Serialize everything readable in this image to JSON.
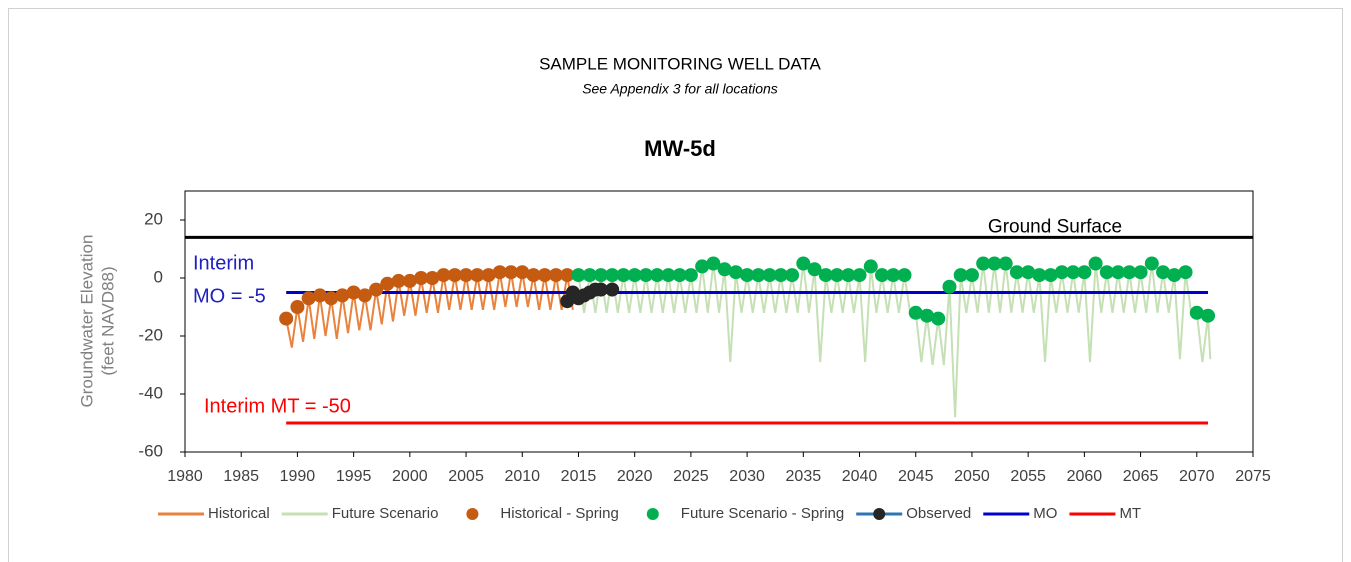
{
  "chart_data": {
    "type": "line",
    "title": "SAMPLE MONITORING WELL DATA",
    "subtitle": "See Appendix 3 for all locations",
    "chart_title": "MW-5d",
    "y_label": [
      "Groundwater Elevation",
      "(feet NAVD88)"
    ],
    "xlim": [
      1980,
      2075
    ],
    "xticks": [
      1980,
      1985,
      1990,
      1995,
      2000,
      2005,
      2010,
      2015,
      2020,
      2025,
      2030,
      2035,
      2040,
      2045,
      2050,
      2055,
      2060,
      2065,
      2070,
      2075
    ],
    "ylim": [
      -60,
      30
    ],
    "yticks": [
      -60,
      -40,
      -20,
      0,
      20
    ],
    "ground_surface": {
      "label": "Ground Surface",
      "value": 14,
      "color": "#000000"
    },
    "annotations": [
      {
        "lines": [
          "Interim",
          "MO = -5"
        ],
        "color": "#2020c0"
      },
      {
        "lines": [
          "Interim MT = -50"
        ],
        "color": "#ff0000"
      }
    ],
    "series": [
      {
        "name": "Historical",
        "kind": "line",
        "color": "#e8823c",
        "x": [
          1989,
          1989.5,
          1990,
          1990.5,
          1991,
          1991.5,
          1992,
          1992.5,
          1993,
          1993.5,
          1994,
          1994.5,
          1995,
          1995.5,
          1996,
          1996.5,
          1997,
          1997.5,
          1998,
          1998.5,
          1999,
          1999.5,
          2000,
          2000.5,
          2001,
          2001.5,
          2002,
          2002.5,
          2003,
          2003.5,
          2004,
          2004.5,
          2005,
          2005.5,
          2006,
          2006.5,
          2007,
          2007.5,
          2008,
          2008.5,
          2009,
          2009.5,
          2010,
          2010.5,
          2011,
          2011.5,
          2012,
          2012.5,
          2013,
          2013.5,
          2014,
          2014.5
        ],
        "values": [
          -14,
          -24,
          -10,
          -22,
          -7,
          -21,
          -6,
          -20,
          -7,
          -21,
          -6,
          -19,
          -5,
          -18,
          -6,
          -18,
          -4,
          -16,
          -2,
          -15,
          -1,
          -13,
          -1,
          -13,
          0,
          -12,
          0,
          -12,
          1,
          -11,
          1,
          -11,
          1,
          -11,
          1,
          -11,
          1,
          -11,
          2,
          -10,
          2,
          -10,
          2,
          -10,
          1,
          -11,
          1,
          -11,
          1,
          -11,
          1,
          -11
        ]
      },
      {
        "name": "Future Scenario",
        "kind": "line",
        "color": "#c5e0b4",
        "x": [
          2015,
          2015.5,
          2016,
          2016.5,
          2017,
          2017.5,
          2018,
          2018.5,
          2019,
          2019.5,
          2020,
          2020.5,
          2021,
          2021.5,
          2022,
          2022.5,
          2023,
          2023.5,
          2024,
          2024.5,
          2025,
          2025.5,
          2026,
          2026.5,
          2027,
          2027.5,
          2028,
          2028.5,
          2029,
          2029.5,
          2030,
          2030.5,
          2031,
          2031.5,
          2032,
          2032.5,
          2033,
          2033.5,
          2034,
          2034.5,
          2035,
          2035.5,
          2036,
          2036.5,
          2037,
          2037.5,
          2038,
          2038.5,
          2039,
          2039.5,
          2040,
          2040.5,
          2041,
          2041.5,
          2042,
          2042.5,
          2043,
          2043.5,
          2044,
          2044.5,
          2045,
          2045.5,
          2046,
          2046.5,
          2047,
          2047.5,
          2048,
          2048.5,
          2049,
          2049.5,
          2050,
          2050.5,
          2051,
          2051.5,
          2052,
          2052.5,
          2053,
          2053.5,
          2054,
          2054.5,
          2055,
          2055.5,
          2056,
          2056.5,
          2057,
          2057.5,
          2058,
          2058.5,
          2059,
          2059.5,
          2060,
          2060.5,
          2061,
          2061.5,
          2062,
          2062.5,
          2063,
          2063.5,
          2064,
          2064.5,
          2065,
          2065.5,
          2066,
          2066.5,
          2067,
          2067.5,
          2068,
          2068.5,
          2069,
          2069.5,
          2070,
          2070.5,
          2071,
          2071.2
        ],
        "values": [
          1,
          -12,
          1,
          -12,
          1,
          -12,
          1,
          -12,
          1,
          -12,
          1,
          -12,
          1,
          -12,
          1,
          -12,
          1,
          -12,
          1,
          -12,
          1,
          -12,
          4,
          -12,
          5,
          -12,
          3,
          -29,
          2,
          -12,
          1,
          -12,
          1,
          -12,
          1,
          -12,
          1,
          -12,
          1,
          -12,
          5,
          -12,
          3,
          -29,
          1,
          -12,
          1,
          -12,
          1,
          -12,
          1,
          -29,
          4,
          -12,
          1,
          -12,
          1,
          -12,
          1,
          -12,
          -12,
          -29,
          -13,
          -30,
          -14,
          -30,
          -3,
          -48,
          1,
          -12,
          1,
          -12,
          5,
          -12,
          5,
          -12,
          5,
          -12,
          2,
          -12,
          2,
          -12,
          1,
          -29,
          1,
          -12,
          2,
          -12,
          2,
          -12,
          2,
          -29,
          5,
          -12,
          2,
          -12,
          2,
          -12,
          2,
          -12,
          2,
          -12,
          5,
          -12,
          2,
          -12,
          1,
          -28,
          2,
          -12,
          -12,
          -29,
          -13,
          -28
        ]
      },
      {
        "name": "Historical - Spring",
        "kind": "scatter",
        "color": "#c55a11",
        "x": [
          1989,
          1990,
          1991,
          1992,
          1993,
          1994,
          1995,
          1996,
          1997,
          1998,
          1999,
          2000,
          2001,
          2002,
          2003,
          2004,
          2005,
          2006,
          2007,
          2008,
          2009,
          2010,
          2011,
          2012,
          2013,
          2014
        ],
        "values": [
          -14,
          -10,
          -7,
          -6,
          -7,
          -6,
          -5,
          -6,
          -4,
          -2,
          -1,
          -1,
          0,
          0,
          1,
          1,
          1,
          1,
          1,
          2,
          2,
          2,
          1,
          1,
          1,
          1
        ]
      },
      {
        "name": "Future Scenario - Spring",
        "kind": "scatter",
        "color": "#00b050",
        "x": [
          2015,
          2016,
          2017,
          2018,
          2019,
          2020,
          2021,
          2022,
          2023,
          2024,
          2025,
          2026,
          2027,
          2028,
          2029,
          2030,
          2031,
          2032,
          2033,
          2034,
          2035,
          2036,
          2037,
          2038,
          2039,
          2040,
          2041,
          2042,
          2043,
          2044,
          2045,
          2046,
          2047,
          2048,
          2049,
          2050,
          2051,
          2052,
          2053,
          2054,
          2055,
          2056,
          2057,
          2058,
          2059,
          2060,
          2061,
          2062,
          2063,
          2064,
          2065,
          2066,
          2067,
          2068,
          2069,
          2070,
          2071
        ],
        "values": [
          1,
          1,
          1,
          1,
          1,
          1,
          1,
          1,
          1,
          1,
          1,
          4,
          5,
          3,
          2,
          1,
          1,
          1,
          1,
          1,
          5,
          3,
          1,
          1,
          1,
          1,
          4,
          1,
          1,
          1,
          -12,
          -13,
          -14,
          -3,
          1,
          1,
          5,
          5,
          5,
          2,
          2,
          1,
          1,
          2,
          2,
          2,
          5,
          2,
          2,
          2,
          2,
          5,
          2,
          1,
          2,
          -12,
          -13
        ]
      },
      {
        "name": "Observed",
        "kind": "line-marker",
        "color": "#2e75b6",
        "marker_color": "#262626",
        "x": [
          2014,
          2014.5,
          2015,
          2015.5,
          2016,
          2016.5,
          2017,
          2018
        ],
        "values": [
          -8,
          -5,
          -7,
          -6,
          -5,
          -4,
          -4,
          -4
        ]
      },
      {
        "name": "MO",
        "kind": "line",
        "color": "#0000cc",
        "x": [
          1989,
          2071
        ],
        "values": [
          -5,
          -5
        ]
      },
      {
        "name": "MT",
        "kind": "line",
        "color": "#ff0000",
        "x": [
          1989,
          2071
        ],
        "values": [
          -50,
          -50
        ]
      }
    ]
  }
}
